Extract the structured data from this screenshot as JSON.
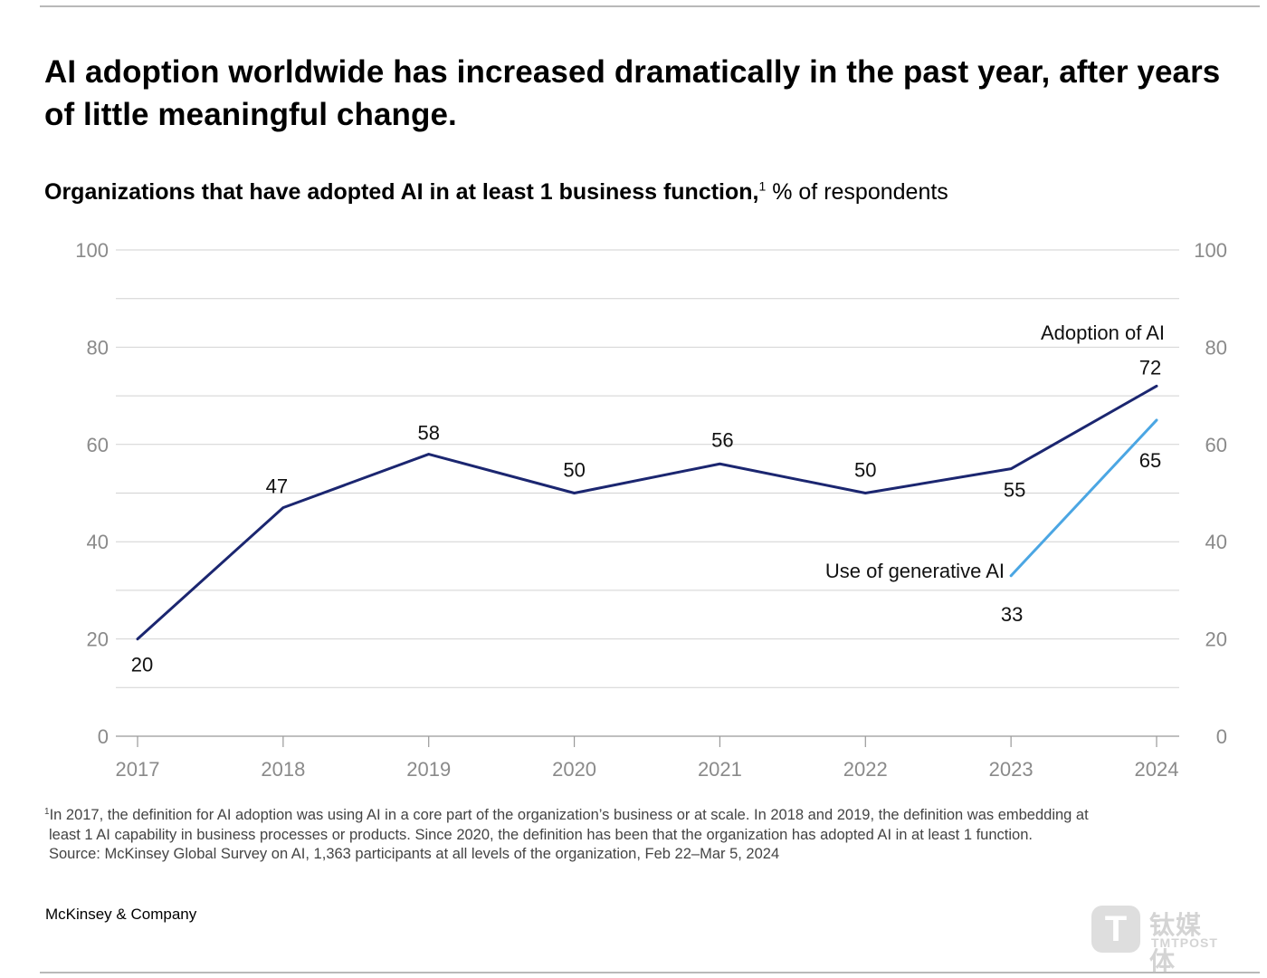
{
  "headline": "AI adoption worldwide has increased dramatically in the past year, after years of little meaningful change.",
  "subtitle": {
    "bold": "Organizations that have adopted AI in at least 1 business function,",
    "footnote_mark": "1",
    "unit": " % of respondents"
  },
  "chart_data": {
    "type": "line",
    "x": [
      "2017",
      "2018",
      "2019",
      "2020",
      "2021",
      "2022",
      "2023",
      "2024"
    ],
    "ylim": [
      0,
      100
    ],
    "yticks": [
      0,
      20,
      40,
      60,
      80,
      100
    ],
    "grid": true,
    "series": [
      {
        "name": "Adoption of AI",
        "color": "#1b2670",
        "values": [
          20,
          47,
          58,
          50,
          56,
          50,
          55,
          72
        ]
      },
      {
        "name": "Use of generative AI",
        "color": "#4ba6e3",
        "values": [
          null,
          null,
          null,
          null,
          null,
          null,
          33,
          65
        ]
      }
    ]
  },
  "footnote": {
    "mark": "1",
    "lines": [
      "In 2017, the definition for AI adoption was using AI in a core part of the organization’s business or at scale. In 2018 and 2019, the definition was embedding at",
      "least 1 AI capability in business processes or products. Since 2020, the definition has been that the organization has adopted AI in at least 1 function.",
      "Source: McKinsey Global Survey on AI, 1,363 participants at all levels of the organization, Feb 22–Mar 5, 2024"
    ]
  },
  "brand": "McKinsey & Company",
  "watermark": {
    "glyph": "T",
    "cn": "钛媒体",
    "en": "TMTPOST"
  }
}
